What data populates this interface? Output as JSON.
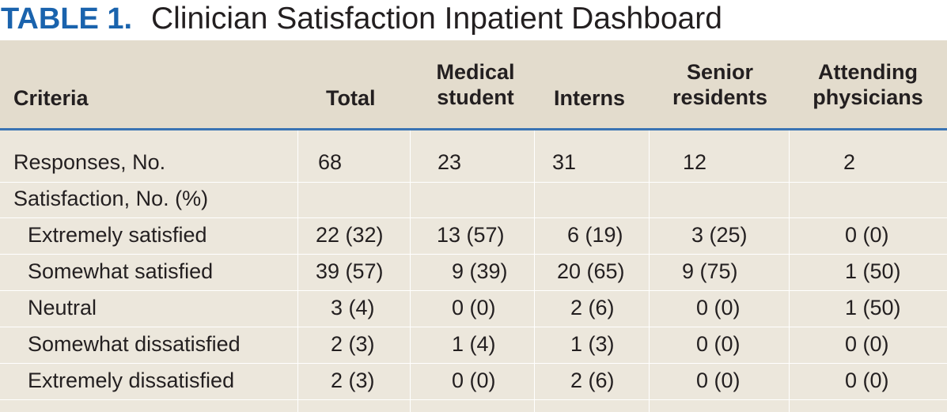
{
  "title": {
    "label": "TABLE 1.",
    "text": "Clinician Satisfaction Inpatient Dashboard"
  },
  "columns": {
    "criteria": "Criteria",
    "total": "Total",
    "medical_student": [
      "Medical",
      "student"
    ],
    "interns": "Interns",
    "senior_residents": [
      "Senior",
      "residents"
    ],
    "attending_physicians": [
      "Attending",
      "physicians"
    ]
  },
  "rows": [
    {
      "criteria": "Responses, No.",
      "total": "68",
      "medical_student": "23",
      "interns": "31",
      "senior_residents": "12",
      "attending_physicians": "2"
    },
    {
      "criteria": "Satisfaction, No. (%)",
      "total": "",
      "medical_student": "",
      "interns": "",
      "senior_residents": "",
      "attending_physicians": ""
    },
    {
      "criteria": "Extremely satisfied",
      "total": "22 (32)",
      "medical_student": "13 (57)",
      "interns": "6 (19)",
      "senior_residents": "3 (25)",
      "attending_physicians": "0 (0)"
    },
    {
      "criteria": "Somewhat satisfied",
      "total": "39 (57)",
      "medical_student": "9 (39)",
      "interns": "20 (65)",
      "senior_residents": "9 (75)",
      "attending_physicians": "1 (50)"
    },
    {
      "criteria": "Neutral",
      "total": "3 (4)",
      "medical_student": "0 (0)",
      "interns": "2 (6)",
      "senior_residents": "0 (0)",
      "attending_physicians": "1 (50)"
    },
    {
      "criteria": "Somewhat dissatisfied",
      "total": "2 (3)",
      "medical_student": "1 (4)",
      "interns": "1 (3)",
      "senior_residents": "0 (0)",
      "attending_physicians": "0 (0)"
    },
    {
      "criteria": "Extremely dissatisfied",
      "total": "2 (3)",
      "medical_student": "0 (0)",
      "interns": "2 (6)",
      "senior_residents": "0 (0)",
      "attending_physicians": "0 (0)"
    }
  ],
  "colors": {
    "title_label": "#1a63ad",
    "header_rule": "#3a73b3",
    "panel_background": "#ece7dc",
    "header_background": "#e3dccd"
  }
}
